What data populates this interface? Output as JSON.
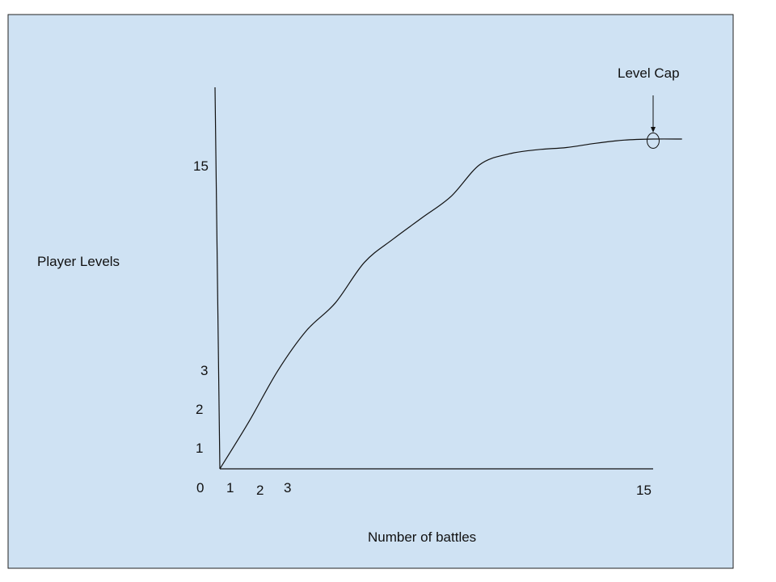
{
  "chart_data": {
    "type": "line",
    "title": "",
    "xlabel": "Number of battles",
    "ylabel": "Player Levels",
    "x_ticks": [
      "0",
      "1",
      "2",
      "3",
      "15"
    ],
    "y_ticks": [
      "1",
      "2",
      "3",
      "15"
    ],
    "series": [
      {
        "x": [
          0,
          1,
          2,
          3,
          4,
          5,
          6,
          7,
          8,
          9,
          10,
          11,
          12,
          13,
          14,
          15,
          16
        ],
        "y": [
          0,
          2.2,
          4.6,
          6.5,
          7.8,
          9.7,
          10.8,
          11.8,
          12.8,
          14.3,
          14.8,
          15.0,
          15.1,
          15.3,
          15.45,
          15.5,
          15.5
        ]
      }
    ],
    "annotation": {
      "text": "Level Cap",
      "x": 15,
      "y": 15.5
    },
    "colors": {
      "background": "#cfe2f3",
      "line": "#111111"
    }
  }
}
